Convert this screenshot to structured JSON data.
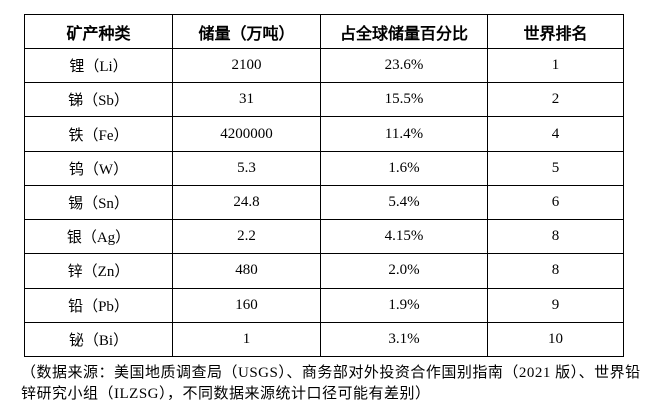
{
  "table": {
    "headers": [
      "矿产种类",
      "储量（万吨）",
      "占全球储量百分比",
      "世界排名"
    ],
    "rows": [
      [
        "锂（Li）",
        "2100",
        "23.6%",
        "1"
      ],
      [
        "锑（Sb）",
        "31",
        "15.5%",
        "2"
      ],
      [
        "铁（Fe）",
        "4200000",
        "11.4%",
        "4"
      ],
      [
        "钨（W）",
        "5.3",
        "1.6%",
        "5"
      ],
      [
        "锡（Sn）",
        "24.8",
        "5.4%",
        "6"
      ],
      [
        "银（Ag）",
        "2.2",
        "4.15%",
        "8"
      ],
      [
        "锌（Zn）",
        "480",
        "2.0%",
        "8"
      ],
      [
        "铅（Pb）",
        "160",
        "1.9%",
        "9"
      ],
      [
        "铋（Bi）",
        "1",
        "3.1%",
        "10"
      ]
    ]
  },
  "footnote": {
    "line1": "（数据来源：美国地质调查局（USGS）、商务部对外投资合作国别指南（2021 版）、世界铅",
    "line2": "锌研究小组（ILZSG），不同数据来源统计口径可能有差别）"
  },
  "colors": {
    "text": "#000000",
    "border": "#000000",
    "background": "#ffffff"
  }
}
